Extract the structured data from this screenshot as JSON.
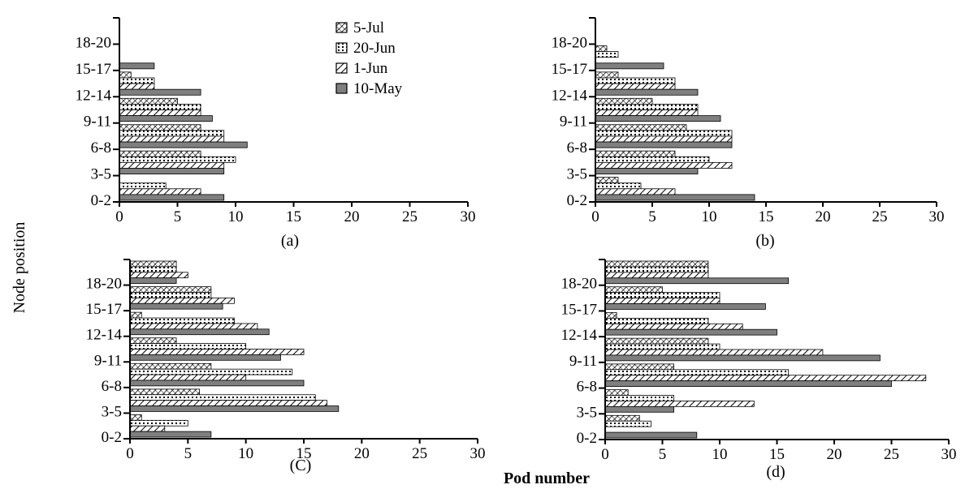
{
  "figure": {
    "y_axis_label": "Node position",
    "x_axis_label": "Pod number"
  },
  "legend": {
    "entries": [
      {
        "name": "5-Jul",
        "pattern": "cross-hatch"
      },
      {
        "name": "20-Jun",
        "pattern": "dotted"
      },
      {
        "name": "1-Jun",
        "pattern": "diagonal-stripe"
      },
      {
        "name": "10-May",
        "pattern": "solid-gray"
      }
    ]
  },
  "colors": {
    "solid_bar": "#7f7f7f",
    "stroke": "#000000",
    "background": "#ffffff"
  },
  "chart_data": [
    {
      "type": "bar",
      "orientation": "horizontal",
      "title": "(a)",
      "categories": [
        "0-2",
        "3-5",
        "6-8",
        "9-11",
        "12-14",
        "15-17",
        "18-20"
      ],
      "xlim": [
        0,
        30
      ],
      "xticks": [
        "0",
        "5",
        "10",
        "15",
        "20",
        "25",
        "30"
      ],
      "series": [
        {
          "name": "5-Jul",
          "values": [
            0,
            7,
            7,
            5,
            1,
            0,
            0
          ]
        },
        {
          "name": "20-Jun",
          "values": [
            4,
            10,
            9,
            7,
            3,
            0,
            0
          ]
        },
        {
          "name": "1-Jun",
          "values": [
            7,
            9,
            9,
            7,
            3,
            0,
            0
          ]
        },
        {
          "name": "10-May",
          "values": [
            9,
            9,
            11,
            8,
            7,
            3,
            0
          ]
        }
      ]
    },
    {
      "type": "bar",
      "orientation": "horizontal",
      "title": "(b)",
      "categories": [
        "0-2",
        "3-5",
        "6-8",
        "9-11",
        "12-14",
        "15-17",
        "18-20"
      ],
      "xlim": [
        0,
        30
      ],
      "xticks": [
        "0",
        "5",
        "10",
        "15",
        "20",
        "25",
        "30"
      ],
      "series": [
        {
          "name": "5-Jul",
          "values": [
            2,
            7,
            8,
            5,
            2,
            1,
            0
          ]
        },
        {
          "name": "20-Jun",
          "values": [
            4,
            10,
            12,
            9,
            7,
            2,
            0
          ]
        },
        {
          "name": "1-Jun",
          "values": [
            7,
            12,
            12,
            9,
            7,
            0,
            0
          ]
        },
        {
          "name": "10-May",
          "values": [
            14,
            9,
            12,
            11,
            9,
            6,
            0
          ]
        }
      ]
    },
    {
      "type": "bar",
      "orientation": "horizontal",
      "title": "(C)",
      "categories": [
        "0-2",
        "3-5",
        "6-8",
        "9-11",
        "12-14",
        "15-17",
        "18-20"
      ],
      "xlim": [
        0,
        30
      ],
      "xticks": [
        "0",
        "5",
        "10",
        "15",
        "20",
        "25",
        "30"
      ],
      "series": [
        {
          "name": "5-Jul",
          "values": [
            1,
            6,
            7,
            4,
            1,
            7,
            4
          ]
        },
        {
          "name": "20-Jun",
          "values": [
            5,
            16,
            14,
            10,
            9,
            7,
            4
          ]
        },
        {
          "name": "1-Jun",
          "values": [
            3,
            17,
            10,
            15,
            11,
            9,
            5
          ]
        },
        {
          "name": "10-May",
          "values": [
            7,
            18,
            15,
            13,
            12,
            8,
            4
          ]
        }
      ]
    },
    {
      "type": "bar",
      "orientation": "horizontal",
      "title": "(d)",
      "categories": [
        "0-2",
        "3-5",
        "6-8",
        "9-11",
        "12-14",
        "15-17",
        "18-20"
      ],
      "xlim": [
        0,
        30
      ],
      "xticks": [
        "0",
        "5",
        "10",
        "15",
        "20",
        "25",
        "30"
      ],
      "series": [
        {
          "name": "5-Jul",
          "values": [
            3,
            2,
            6,
            9,
            1,
            5,
            9
          ]
        },
        {
          "name": "20-Jun",
          "values": [
            4,
            6,
            16,
            10,
            9,
            10,
            9
          ]
        },
        {
          "name": "1-Jun",
          "values": [
            0,
            13,
            28,
            19,
            12,
            10,
            9
          ]
        },
        {
          "name": "10-May",
          "values": [
            8,
            6,
            25,
            24,
            15,
            14,
            16
          ]
        }
      ]
    }
  ]
}
